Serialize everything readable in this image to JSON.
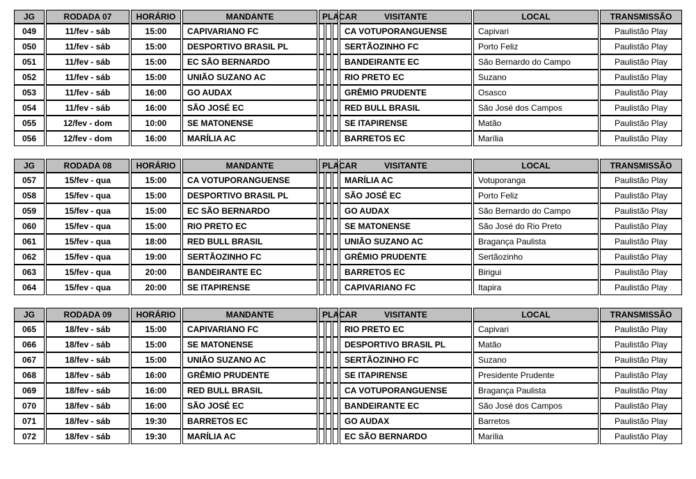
{
  "headers": {
    "jg": "JG",
    "horario": "HORÁRIO",
    "mandante": "MANDANTE",
    "placar": "PLACAR",
    "visitante": "VISITANTE",
    "local": "LOCAL",
    "transmissao": "TRANSMISSÃO"
  },
  "score_sep": "x",
  "rounds": [
    {
      "title": "RODADA 07",
      "matches": [
        {
          "jg": "049",
          "date": "11/fev - sáb",
          "time": "15:00",
          "home": "CAPIVARIANO FC",
          "s1": "",
          "s2": "",
          "away": "CA VOTUPORANGUENSE",
          "local": "Capivari",
          "trans": "Paulistão Play"
        },
        {
          "jg": "050",
          "date": "11/fev - sáb",
          "time": "15:00",
          "home": "DESPORTIVO BRASIL PL",
          "s1": "",
          "s2": "",
          "away": "SERTÃOZINHO FC",
          "local": "Porto Feliz",
          "trans": "Paulistão Play"
        },
        {
          "jg": "051",
          "date": "11/fev - sáb",
          "time": "15:00",
          "home": "EC SÃO BERNARDO",
          "s1": "",
          "s2": "",
          "away": "BANDEIRANTE EC",
          "local": "São Bernardo do Campo",
          "trans": "Paulistão Play"
        },
        {
          "jg": "052",
          "date": "11/fev - sáb",
          "time": "15:00",
          "home": "UNIÃO SUZANO AC",
          "s1": "",
          "s2": "",
          "away": "RIO PRETO EC",
          "local": "Suzano",
          "trans": "Paulistão Play"
        },
        {
          "jg": "053",
          "date": "11/fev - sáb",
          "time": "16:00",
          "home": "GO AUDAX",
          "s1": "",
          "s2": "",
          "away": "GRÊMIO PRUDENTE",
          "local": "Osasco",
          "trans": "Paulistão Play"
        },
        {
          "jg": "054",
          "date": "11/fev - sáb",
          "time": "16:00",
          "home": "SÃO JOSÉ EC",
          "s1": "",
          "s2": "",
          "away": "RED BULL BRASIL",
          "local": "São José dos Campos",
          "trans": "Paulistão Play"
        },
        {
          "jg": "055",
          "date": "12/fev - dom",
          "time": "10:00",
          "home": "SE MATONENSE",
          "s1": "",
          "s2": "",
          "away": "SE ITAPIRENSE",
          "local": "Matão",
          "trans": "Paulistão Play"
        },
        {
          "jg": "056",
          "date": "12/fev - dom",
          "time": "16:00",
          "home": "MARÍLIA AC",
          "s1": "",
          "s2": "",
          "away": "BARRETOS EC",
          "local": "Marília",
          "trans": "Paulistão Play"
        }
      ]
    },
    {
      "title": "RODADA 08",
      "matches": [
        {
          "jg": "057",
          "date": "15/fev - qua",
          "time": "15:00",
          "home": "CA VOTUPORANGUENSE",
          "s1": "",
          "s2": "",
          "away": "MARÍLIA AC",
          "local": "Votuporanga",
          "trans": "Paulistão Play"
        },
        {
          "jg": "058",
          "date": "15/fev - qua",
          "time": "15:00",
          "home": "DESPORTIVO BRASIL PL",
          "s1": "",
          "s2": "",
          "away": "SÃO JOSÉ EC",
          "local": "Porto Feliz",
          "trans": "Paulistão Play"
        },
        {
          "jg": "059",
          "date": "15/fev - qua",
          "time": "15:00",
          "home": "EC SÃO BERNARDO",
          "s1": "",
          "s2": "",
          "away": "GO AUDAX",
          "local": "São Bernardo do Campo",
          "trans": "Paulistão Play"
        },
        {
          "jg": "060",
          "date": "15/fev - qua",
          "time": "15:00",
          "home": "RIO PRETO EC",
          "s1": "",
          "s2": "",
          "away": "SE MATONENSE",
          "local": "São José do Rio Preto",
          "trans": "Paulistão Play"
        },
        {
          "jg": "061",
          "date": "15/fev - qua",
          "time": "18:00",
          "home": "RED BULL BRASIL",
          "s1": "",
          "s2": "",
          "away": "UNIÃO SUZANO AC",
          "local": "Bragança Paulista",
          "trans": "Paulistão Play"
        },
        {
          "jg": "062",
          "date": "15/fev - qua",
          "time": "19:00",
          "home": "SERTÃOZINHO FC",
          "s1": "",
          "s2": "",
          "away": "GRÊMIO PRUDENTE",
          "local": "Sertãozinho",
          "trans": "Paulistão Play"
        },
        {
          "jg": "063",
          "date": "15/fev - qua",
          "time": "20:00",
          "home": "BANDEIRANTE EC",
          "s1": "",
          "s2": "",
          "away": "BARRETOS EC",
          "local": "Birigui",
          "trans": "Paulistão Play"
        },
        {
          "jg": "064",
          "date": "15/fev - qua",
          "time": "20:00",
          "home": "SE ITAPIRENSE",
          "s1": "",
          "s2": "",
          "away": "CAPIVARIANO FC",
          "local": "Itapira",
          "trans": "Paulistão Play"
        }
      ]
    },
    {
      "title": "RODADA 09",
      "matches": [
        {
          "jg": "065",
          "date": "18/fev - sáb",
          "time": "15:00",
          "home": "CAPIVARIANO FC",
          "s1": "",
          "s2": "",
          "away": "RIO PRETO EC",
          "local": "Capivari",
          "trans": "Paulistão Play"
        },
        {
          "jg": "066",
          "date": "18/fev - sáb",
          "time": "15:00",
          "home": "SE MATONENSE",
          "s1": "",
          "s2": "",
          "away": "DESPORTIVO BRASIL PL",
          "local": "Matão",
          "trans": "Paulistão Play"
        },
        {
          "jg": "067",
          "date": "18/fev - sáb",
          "time": "15:00",
          "home": "UNIÃO SUZANO AC",
          "s1": "",
          "s2": "",
          "away": "SERTÃOZINHO FC",
          "local": "Suzano",
          "trans": "Paulistão Play"
        },
        {
          "jg": "068",
          "date": "18/fev - sáb",
          "time": "16:00",
          "home": "GRÊMIO PRUDENTE",
          "s1": "",
          "s2": "",
          "away": "SE ITAPIRENSE",
          "local": "Presidente Prudente",
          "trans": "Paulistão Play"
        },
        {
          "jg": "069",
          "date": "18/fev - sáb",
          "time": "16:00",
          "home": "RED BULL BRASIL",
          "s1": "",
          "s2": "",
          "away": "CA VOTUPORANGUENSE",
          "local": "Bragança Paulista",
          "trans": "Paulistão Play"
        },
        {
          "jg": "070",
          "date": "18/fev - sáb",
          "time": "16:00",
          "home": "SÃO JOSÉ EC",
          "s1": "",
          "s2": "",
          "away": "BANDEIRANTE EC",
          "local": "São José dos Campos",
          "trans": "Paulistão Play"
        },
        {
          "jg": "071",
          "date": "18/fev - sáb",
          "time": "19:30",
          "home": "BARRETOS EC",
          "s1": "",
          "s2": "",
          "away": "GO AUDAX",
          "local": "Barretos",
          "trans": "Paulistão Play"
        },
        {
          "jg": "072",
          "date": "18/fev - sáb",
          "time": "19:30",
          "home": "MARÍLIA AC",
          "s1": "",
          "s2": "",
          "away": "EC SÃO BERNARDO",
          "local": "Marília",
          "trans": "Paulistão Play"
        }
      ]
    }
  ]
}
